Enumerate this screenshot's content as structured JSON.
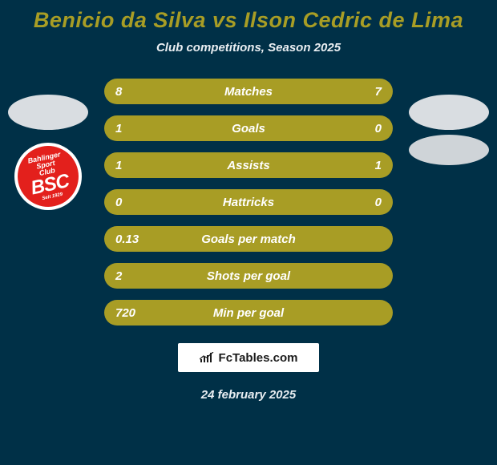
{
  "colors": {
    "background": "#003047",
    "accent": "#a89d25",
    "text_light": "#e9eef2",
    "bar_text": "#ffffff",
    "avatar_fill": "#d9dde1",
    "badge_outer": "#ffffff",
    "badge_inner": "#e3201c",
    "badge_text": "#ffffff",
    "right_pill": "#cfd4d8",
    "brand_box_bg": "#ffffff",
    "brand_box_border": "#003047",
    "brand_text": "#1a1a1a"
  },
  "title": {
    "text": "Benicio da Silva vs Ilson Cedric de Lima",
    "color": "#a89d25",
    "fontsize": 27
  },
  "subtitle": {
    "text": "Club competitions, Season 2025",
    "color": "#e9eef2",
    "fontsize": 15
  },
  "bars": {
    "bg": "#a89d25",
    "text_color": "#ffffff",
    "height": 32,
    "radius": 16,
    "fontsize": 15,
    "rows": [
      {
        "label": "Matches",
        "left": "8",
        "right": "7"
      },
      {
        "label": "Goals",
        "left": "1",
        "right": "0"
      },
      {
        "label": "Assists",
        "left": "1",
        "right": "1"
      },
      {
        "label": "Hattricks",
        "left": "0",
        "right": "0"
      },
      {
        "label": "Goals per match",
        "left": "0.13",
        "right": ""
      },
      {
        "label": "Shots per goal",
        "left": "2",
        "right": ""
      },
      {
        "label": "Min per goal",
        "left": "720",
        "right": ""
      }
    ]
  },
  "badge": {
    "line1": "Bahlinger",
    "line2": "Sport",
    "line3": "Club",
    "big": "BSC",
    "footer": "Seit 1929"
  },
  "brand": {
    "text": "FcTables.com"
  },
  "date": {
    "text": "24 february 2025",
    "color": "#e9eef2"
  }
}
